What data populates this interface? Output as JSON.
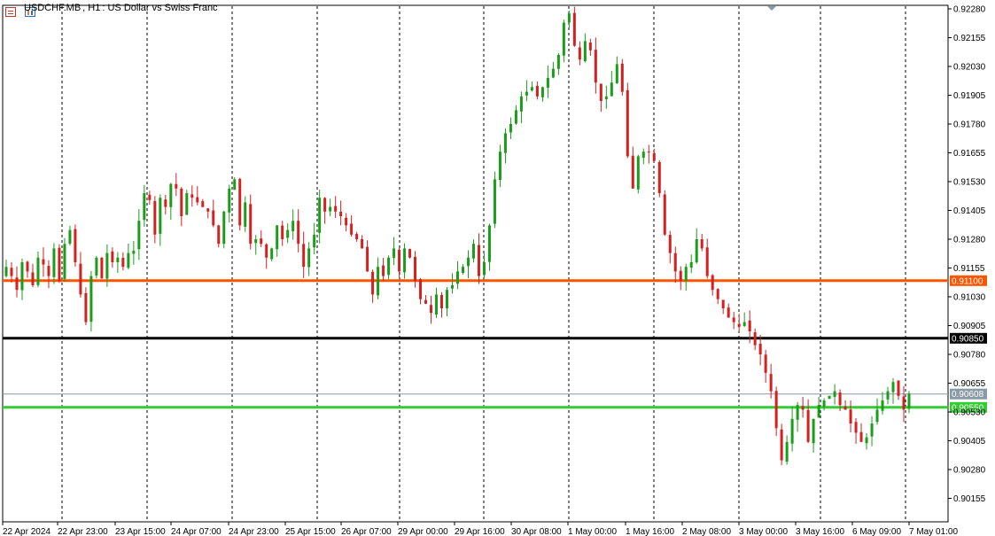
{
  "header": {
    "symbol": "USDCHF.MB",
    "timeframe": "H1",
    "description": "US Dollar vs Swiss Franc",
    "menu_icon": "table-icon",
    "chart_icon": "bar-chart-icon"
  },
  "chart_data": {
    "type": "candlestick",
    "title": "USDCHF.MB, H1:  US Dollar vs Swiss Franc",
    "ylim": [
      0.901,
      0.9228
    ],
    "y_ticks": [
      "0.92280",
      "0.92155",
      "0.92030",
      "0.91905",
      "0.91780",
      "0.91655",
      "0.91530",
      "0.91405",
      "0.91280",
      "0.91155",
      "0.91030",
      "0.90905",
      "0.90780",
      "0.90655",
      "0.90530",
      "0.90405",
      "0.90280",
      "0.90155"
    ],
    "x_ticks": [
      "22 Apr 2024",
      "22 Apr 23:00",
      "23 Apr 15:00",
      "24 Apr 07:00",
      "24 Apr 23:00",
      "25 Apr 15:00",
      "26 Apr 07:00",
      "29 Apr 00:00",
      "29 Apr 16:00",
      "30 Apr 08:00",
      "1 May 00:00",
      "1 May 16:00",
      "2 May 08:00",
      "3 May 00:00",
      "3 May 16:00",
      "6 May 09:00",
      "7 May 01:00"
    ],
    "grid": "vertical-dashed",
    "horizontal_levels": [
      {
        "value": "0.91100",
        "color": "#ff5500"
      },
      {
        "value": "0.90850",
        "color": "#000000"
      },
      {
        "value": "0.90608",
        "color": "#8a99a6"
      },
      {
        "value": "0.90550",
        "color": "#33cc33"
      }
    ],
    "colors": {
      "bull": "#1a9e1a",
      "bear": "#d42020"
    },
    "close_path": [
      0.9116,
      0.9112,
      0.9106,
      0.9118,
      0.9114,
      0.9108,
      0.912,
      0.9117,
      0.9112,
      0.9124,
      0.911,
      0.9126,
      0.9132,
      0.9118,
      0.9104,
      0.9092,
      0.9112,
      0.912,
      0.9111,
      0.9122,
      0.9118,
      0.912,
      0.9116,
      0.9122,
      0.9123,
      0.9136,
      0.9148,
      0.9145,
      0.913,
      0.9146,
      0.9142,
      0.9152,
      0.915,
      0.9138,
      0.9148,
      0.9146,
      0.9144,
      0.9142,
      0.914,
      0.9134,
      0.9126,
      0.914,
      0.915,
      0.9154,
      0.9134,
      0.9144,
      0.9126,
      0.9128,
      0.9126,
      0.912,
      0.9124,
      0.9134,
      0.9128,
      0.9132,
      0.9136,
      0.9126,
      0.9116,
      0.9124,
      0.913,
      0.9146,
      0.914,
      0.9142,
      0.914,
      0.9138,
      0.9134,
      0.913,
      0.9128,
      0.9124,
      0.9114,
      0.9104,
      0.9116,
      0.9112,
      0.912,
      0.9124,
      0.9114,
      0.9124,
      0.912,
      0.911,
      0.9102,
      0.91,
      0.9096,
      0.9104,
      0.9098,
      0.9106,
      0.9108,
      0.9114,
      0.9116,
      0.912,
      0.9126,
      0.9112,
      0.9118,
      0.9134,
      0.9154,
      0.9166,
      0.9174,
      0.9178,
      0.9184,
      0.919,
      0.9192,
      0.9194,
      0.919,
      0.9194,
      0.9198,
      0.9202,
      0.9208,
      0.9222,
      0.9226,
      0.9212,
      0.9206,
      0.9214,
      0.921,
      0.9196,
      0.9188,
      0.919,
      0.9196,
      0.9204,
      0.9192,
      0.9164,
      0.915,
      0.9164,
      0.9166,
      0.9166,
      0.9162,
      0.9148,
      0.913,
      0.9122,
      0.9114,
      0.911,
      0.9116,
      0.9118,
      0.9128,
      0.9124,
      0.9112,
      0.9106,
      0.9102,
      0.9098,
      0.9094,
      0.9092,
      0.909,
      0.9092,
      0.9088,
      0.9082,
      0.9078,
      0.907,
      0.9062,
      0.9046,
      0.9032,
      0.904,
      0.905,
      0.9056,
      0.9054,
      0.904,
      0.905,
      0.9056,
      0.9058,
      0.906,
      0.9062,
      0.9056,
      0.9054,
      0.9048,
      0.9044,
      0.904,
      0.9042,
      0.9048,
      0.9054,
      0.9058,
      0.9062,
      0.9066,
      0.906,
      0.9054,
      0.9061
    ]
  },
  "price_labels": {
    "level_1": "0.91100",
    "level_2": "0.90850",
    "current": "0.90608",
    "level_3": "0.90550"
  }
}
